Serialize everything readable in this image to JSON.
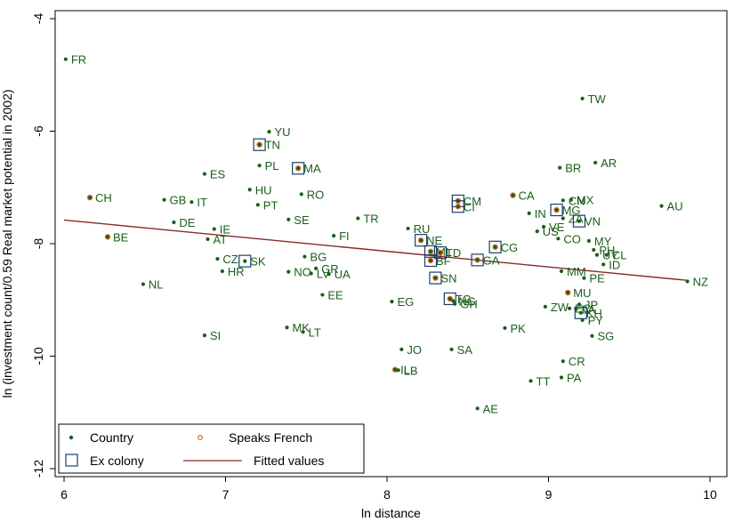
{
  "chart_data": {
    "type": "scatter",
    "xlabel": "ln distance",
    "ylabel": "ln (investment count/0.59 Real market potential in 2002)",
    "xlim": [
      6,
      10
    ],
    "ylim": [
      -12,
      -4
    ],
    "xticks": [
      6,
      7,
      8,
      9,
      10
    ],
    "yticks": [
      -12,
      -10,
      -8,
      -6,
      -4
    ],
    "grid": false,
    "legend": {
      "placement": "bottom-left",
      "entries": [
        {
          "key": "country",
          "label": "Country"
        },
        {
          "key": "french",
          "label": "Speaks French"
        },
        {
          "key": "colony",
          "label": "Ex colony"
        },
        {
          "key": "fit",
          "label": "Fitted values"
        }
      ]
    },
    "colors": {
      "point": "#1a5e1a",
      "label": "#1a5e1a",
      "french_ring": "#e8702a",
      "colony_box": "#1a3f6e",
      "fit_line": "#8b2a2a",
      "axis": "#000000"
    },
    "fit_line": [
      [
        6.0,
        -7.58
      ],
      [
        9.85,
        -8.65
      ]
    ],
    "points": [
      {
        "code": "FR",
        "x": 6.01,
        "y": -4.72,
        "french": false,
        "colony": false
      },
      {
        "code": "CH",
        "x": 6.16,
        "y": -7.18,
        "french": true,
        "colony": false
      },
      {
        "code": "BE",
        "x": 6.27,
        "y": -7.88,
        "french": true,
        "colony": false
      },
      {
        "code": "NL",
        "x": 6.49,
        "y": -8.72,
        "french": false,
        "colony": false
      },
      {
        "code": "GB",
        "x": 6.62,
        "y": -7.22,
        "french": false,
        "colony": false
      },
      {
        "code": "DE",
        "x": 6.68,
        "y": -7.62,
        "french": false,
        "colony": false
      },
      {
        "code": "IT",
        "x": 6.79,
        "y": -7.26,
        "french": false,
        "colony": false
      },
      {
        "code": "ES",
        "x": 6.87,
        "y": -6.76,
        "french": false,
        "colony": false
      },
      {
        "code": "IE",
        "x": 6.93,
        "y": -7.74,
        "french": false,
        "colony": false
      },
      {
        "code": "AT",
        "x": 6.89,
        "y": -7.92,
        "french": false,
        "colony": false
      },
      {
        "code": "SI",
        "x": 6.87,
        "y": -9.63,
        "french": false,
        "colony": false
      },
      {
        "code": "CZ",
        "x": 6.95,
        "y": -8.27,
        "french": false,
        "colony": false
      },
      {
        "code": "HR",
        "x": 6.98,
        "y": -8.49,
        "french": false,
        "colony": false
      },
      {
        "code": "SK",
        "x": 7.12,
        "y": -8.31,
        "french": false,
        "colony": true
      },
      {
        "code": "PT",
        "x": 7.2,
        "y": -7.31,
        "french": false,
        "colony": false
      },
      {
        "code": "HU",
        "x": 7.15,
        "y": -7.04,
        "french": false,
        "colony": false
      },
      {
        "code": "PL",
        "x": 7.21,
        "y": -6.61,
        "french": false,
        "colony": false
      },
      {
        "code": "YU",
        "x": 7.27,
        "y": -6.01,
        "french": false,
        "colony": false
      },
      {
        "code": "TN",
        "x": 7.21,
        "y": -6.24,
        "french": true,
        "colony": true
      },
      {
        "code": "MA",
        "x": 7.45,
        "y": -6.66,
        "french": true,
        "colony": true
      },
      {
        "code": "RO",
        "x": 7.47,
        "y": -7.12,
        "french": false,
        "colony": false
      },
      {
        "code": "SE",
        "x": 7.39,
        "y": -7.57,
        "french": false,
        "colony": false
      },
      {
        "code": "BG",
        "x": 7.49,
        "y": -8.23,
        "french": false,
        "colony": false
      },
      {
        "code": "NO",
        "x": 7.39,
        "y": -8.5,
        "french": false,
        "colony": false
      },
      {
        "code": "LV",
        "x": 7.53,
        "y": -8.53,
        "french": false,
        "colony": false
      },
      {
        "code": "GR",
        "x": 7.56,
        "y": -8.44,
        "french": false,
        "colony": false
      },
      {
        "code": "UA",
        "x": 7.64,
        "y": -8.54,
        "french": false,
        "colony": false
      },
      {
        "code": "EE",
        "x": 7.6,
        "y": -8.91,
        "french": false,
        "colony": false
      },
      {
        "code": "MK",
        "x": 7.38,
        "y": -9.49,
        "french": false,
        "colony": false
      },
      {
        "code": "LT",
        "x": 7.48,
        "y": -9.57,
        "french": false,
        "colony": false
      },
      {
        "code": "FI",
        "x": 7.67,
        "y": -7.86,
        "french": false,
        "colony": false
      },
      {
        "code": "TR",
        "x": 7.82,
        "y": -7.55,
        "french": false,
        "colony": false
      },
      {
        "code": "EG",
        "x": 8.03,
        "y": -9.03,
        "french": false,
        "colony": false
      },
      {
        "code": "RU",
        "x": 8.13,
        "y": -7.73,
        "french": false,
        "colony": false
      },
      {
        "code": "NE",
        "x": 8.21,
        "y": -7.94,
        "french": true,
        "colony": true
      },
      {
        "code": "ML",
        "x": 8.27,
        "y": -8.14,
        "french": true,
        "colony": true
      },
      {
        "code": "TD",
        "x": 8.33,
        "y": -8.16,
        "french": true,
        "colony": true
      },
      {
        "code": "BF",
        "x": 8.27,
        "y": -8.3,
        "french": true,
        "colony": true
      },
      {
        "code": "SN",
        "x": 8.3,
        "y": -8.61,
        "french": true,
        "colony": true
      },
      {
        "code": "TG",
        "x": 8.39,
        "y": -8.98,
        "french": true,
        "colony": true
      },
      {
        "code": "NG",
        "x": 8.41,
        "y": -9.02,
        "french": false,
        "colony": false
      },
      {
        "code": "GH",
        "x": 8.42,
        "y": -9.07,
        "french": false,
        "colony": false
      },
      {
        "code": "JO",
        "x": 8.09,
        "y": -9.88,
        "french": false,
        "colony": false
      },
      {
        "code": "SA",
        "x": 8.4,
        "y": -9.88,
        "french": false,
        "colony": false
      },
      {
        "code": "IL",
        "x": 8.05,
        "y": -10.24,
        "french": true,
        "colony": false
      },
      {
        "code": "LB",
        "x": 8.07,
        "y": -10.25,
        "french": false,
        "colony": false
      },
      {
        "code": "AE",
        "x": 8.56,
        "y": -10.93,
        "french": false,
        "colony": false
      },
      {
        "code": "CM",
        "x": 8.44,
        "y": -7.24,
        "french": true,
        "colony": true
      },
      {
        "code": "CI",
        "x": 8.44,
        "y": -7.34,
        "french": true,
        "colony": true
      },
      {
        "code": "GA",
        "x": 8.56,
        "y": -8.29,
        "french": true,
        "colony": true
      },
      {
        "code": "CG",
        "x": 8.67,
        "y": -8.06,
        "french": true,
        "colony": true
      },
      {
        "code": "PK",
        "x": 8.73,
        "y": -9.5,
        "french": false,
        "colony": false
      },
      {
        "code": "CA",
        "x": 8.78,
        "y": -7.14,
        "french": true,
        "colony": false
      },
      {
        "code": "IN",
        "x": 8.88,
        "y": -7.46,
        "french": false,
        "colony": false
      },
      {
        "code": "US",
        "x": 8.93,
        "y": -7.78,
        "french": false,
        "colony": false
      },
      {
        "code": "VE",
        "x": 8.97,
        "y": -7.7,
        "french": false,
        "colony": false
      },
      {
        "code": "TT",
        "x": 8.89,
        "y": -10.44,
        "french": false,
        "colony": false
      },
      {
        "code": "ZW",
        "x": 8.98,
        "y": -9.12,
        "french": false,
        "colony": false
      },
      {
        "code": "BR",
        "x": 9.07,
        "y": -6.65,
        "french": false,
        "colony": false
      },
      {
        "code": "TW",
        "x": 9.21,
        "y": -5.42,
        "french": false,
        "colony": false
      },
      {
        "code": "AR",
        "x": 9.29,
        "y": -6.56,
        "french": false,
        "colony": false
      },
      {
        "code": "CN",
        "x": 9.09,
        "y": -7.23,
        "french": false,
        "colony": false
      },
      {
        "code": "MX",
        "x": 9.14,
        "y": -7.22,
        "french": false,
        "colony": false
      },
      {
        "code": "MG",
        "x": 9.05,
        "y": -7.4,
        "french": true,
        "colony": true
      },
      {
        "code": "ZA",
        "x": 9.09,
        "y": -7.55,
        "french": false,
        "colony": false
      },
      {
        "code": "VN",
        "x": 9.19,
        "y": -7.6,
        "french": false,
        "colony": true
      },
      {
        "code": "CO",
        "x": 9.06,
        "y": -7.91,
        "french": false,
        "colony": false
      },
      {
        "code": "MY",
        "x": 9.25,
        "y": -7.95,
        "french": false,
        "colony": false
      },
      {
        "code": "PH",
        "x": 9.28,
        "y": -8.11,
        "french": false,
        "colony": false
      },
      {
        "code": "UY",
        "x": 9.3,
        "y": -8.2,
        "french": false,
        "colony": false
      },
      {
        "code": "CL",
        "x": 9.36,
        "y": -8.2,
        "french": false,
        "colony": false
      },
      {
        "code": "ID",
        "x": 9.34,
        "y": -8.37,
        "french": false,
        "colony": false
      },
      {
        "code": "MM",
        "x": 9.08,
        "y": -8.49,
        "french": false,
        "colony": false
      },
      {
        "code": "PE",
        "x": 9.22,
        "y": -8.61,
        "french": false,
        "colony": false
      },
      {
        "code": "MU",
        "x": 9.12,
        "y": -8.87,
        "french": true,
        "colony": false
      },
      {
        "code": "JP",
        "x": 9.19,
        "y": -9.08,
        "french": false,
        "colony": false
      },
      {
        "code": "EC",
        "x": 9.13,
        "y": -9.15,
        "french": false,
        "colony": false
      },
      {
        "code": "LA",
        "x": 9.17,
        "y": -9.16,
        "french": false,
        "colony": false
      },
      {
        "code": "KH",
        "x": 9.2,
        "y": -9.23,
        "french": false,
        "colony": true
      },
      {
        "code": "PY",
        "x": 9.21,
        "y": -9.36,
        "french": false,
        "colony": false
      },
      {
        "code": "SG",
        "x": 9.27,
        "y": -9.64,
        "french": false,
        "colony": false
      },
      {
        "code": "CR",
        "x": 9.09,
        "y": -10.09,
        "french": false,
        "colony": false
      },
      {
        "code": "PA",
        "x": 9.08,
        "y": -10.38,
        "french": false,
        "colony": false
      },
      {
        "code": "AU",
        "x": 9.7,
        "y": -7.33,
        "french": false,
        "colony": false
      },
      {
        "code": "NZ",
        "x": 9.86,
        "y": -8.67,
        "french": false,
        "colony": false
      }
    ]
  }
}
